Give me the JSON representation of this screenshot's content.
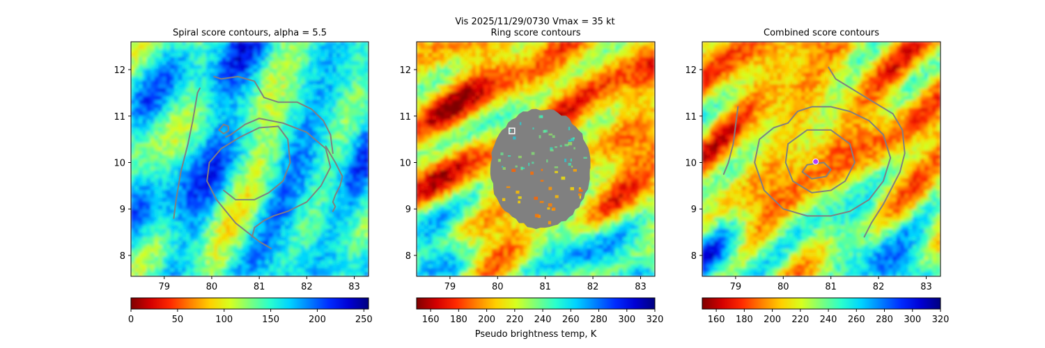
{
  "suptitle": [
    "Vis  2025/11/29/0730    Vmax = 35 kt",
    "Ring score contours"
  ],
  "colormap": [
    "#800000",
    "#d40000",
    "#ff2a00",
    "#ff8000",
    "#ffd000",
    "#d6ff1f",
    "#7dff7a",
    "#2affcd",
    "#00d4ff",
    "#0080ff",
    "#002cff",
    "#0000d4",
    "#00007f"
  ],
  "contour_color": "#808080",
  "chart_data": [
    {
      "type": "heatmap",
      "title": "Spiral score contours, alpha =  5.5",
      "xlim": [
        78.3,
        83.3
      ],
      "ylim": [
        7.55,
        12.6
      ],
      "xticks": [
        "79",
        "80",
        "81",
        "82",
        "83"
      ],
      "yticks": [
        "8",
        "9",
        "10",
        "11",
        "12"
      ],
      "colorbar": {
        "min": 0,
        "max": 255,
        "ticks": [
          "0",
          "50",
          "100",
          "150",
          "200",
          "250"
        ],
        "label": ""
      },
      "field_mean_fraction": 0.62,
      "contours": [
        {
          "x": [
            80.3,
            80.4,
            80.7,
            81.0,
            81.5,
            82.0,
            82.4,
            82.5,
            82.3,
            82.0,
            81.6,
            81.3,
            81.1,
            80.9,
            80.85
          ],
          "y": [
            10.55,
            10.6,
            10.82,
            10.95,
            10.85,
            10.65,
            10.3,
            9.9,
            9.5,
            9.15,
            8.95,
            8.85,
            8.75,
            8.6,
            8.4
          ]
        },
        {
          "x": [
            81.25,
            81.0,
            80.5,
            80.1,
            79.9,
            79.95,
            80.2,
            80.6,
            81.0,
            81.4,
            81.6,
            81.65,
            81.5,
            81.2,
            80.9,
            80.5,
            80.25
          ],
          "y": [
            8.15,
            8.3,
            8.7,
            9.2,
            9.6,
            10.0,
            10.3,
            10.55,
            10.75,
            10.78,
            10.5,
            10.0,
            9.6,
            9.35,
            9.2,
            9.2,
            9.4
          ]
        },
        {
          "x": [
            79.2,
            79.25,
            79.35,
            79.5,
            79.6,
            79.65,
            79.7,
            79.75
          ],
          "y": [
            8.8,
            9.2,
            9.8,
            10.4,
            10.9,
            11.2,
            11.5,
            11.6
          ]
        },
        {
          "x": [
            80.05,
            80.2,
            80.55,
            80.9,
            81.1,
            81.4,
            81.8,
            82.1,
            82.35,
            82.5,
            82.55
          ],
          "y": [
            11.85,
            11.8,
            11.85,
            11.75,
            11.4,
            11.3,
            11.3,
            11.15,
            10.9,
            10.6,
            10.2
          ]
        },
        {
          "x": [
            82.4,
            82.6,
            82.75,
            82.7,
            82.6,
            82.55,
            82.6,
            82.55
          ],
          "y": [
            10.35,
            10.0,
            9.7,
            9.5,
            9.3,
            9.15,
            9.05,
            8.95
          ]
        },
        {
          "x": [
            80.15,
            80.25,
            80.35,
            80.35,
            80.25,
            80.15
          ],
          "y": [
            10.7,
            10.62,
            10.68,
            10.78,
            10.82,
            10.7
          ]
        }
      ]
    },
    {
      "type": "heatmap",
      "title": "",
      "xlim": [
        78.3,
        83.3
      ],
      "ylim": [
        7.55,
        12.6
      ],
      "xticks": [
        "79",
        "80",
        "81",
        "82",
        "83"
      ],
      "yticks": [
        "8",
        "9",
        "10",
        "11",
        "12"
      ],
      "colorbar": {
        "min": 150,
        "max": 320,
        "ticks": [
          "160",
          "180",
          "200",
          "220",
          "240",
          "260",
          "280",
          "300",
          "320"
        ],
        "label": "Pseudo brightness temp, K"
      },
      "field_mean_fraction": 0.3,
      "masked_region": {
        "center": [
          80.9,
          9.87
        ],
        "radius_x": 1.05,
        "radius_y": 1.28
      },
      "marker": {
        "shape": "square",
        "x": 80.3,
        "y": 10.68,
        "color": "#ffffff"
      },
      "contours": []
    },
    {
      "type": "heatmap",
      "title": "Combined score contours",
      "xlim": [
        78.3,
        83.3
      ],
      "ylim": [
        7.55,
        12.6
      ],
      "xticks": [
        "79",
        "80",
        "81",
        "82",
        "83"
      ],
      "yticks": [
        "8",
        "9",
        "10",
        "11",
        "12"
      ],
      "colorbar": {
        "min": 150,
        "max": 320,
        "ticks": [
          "160",
          "180",
          "200",
          "220",
          "240",
          "260",
          "280",
          "300",
          "320"
        ],
        "label": ""
      },
      "field_mean_fraction": 0.32,
      "marker": {
        "shape": "circle",
        "x": 80.68,
        "y": 10.02,
        "color": "#b03cff"
      },
      "contours": [
        {
          "x": [
            80.1,
            80.3,
            80.6,
            81.0,
            81.4,
            81.8,
            82.1,
            82.25,
            82.1,
            81.8,
            81.4,
            81.0,
            80.5,
            80.0,
            79.6,
            79.4,
            79.5,
            79.8,
            80.1
          ],
          "y": [
            10.85,
            11.1,
            11.2,
            11.2,
            11.1,
            10.9,
            10.6,
            10.1,
            9.6,
            9.2,
            8.95,
            8.85,
            8.85,
            9.0,
            9.4,
            10.0,
            10.5,
            10.75,
            10.85
          ]
        },
        {
          "x": [
            80.1,
            80.5,
            81.0,
            81.4,
            81.5,
            81.3,
            81.0,
            80.6,
            80.2,
            80.05,
            80.1
          ],
          "y": [
            10.4,
            10.7,
            10.7,
            10.4,
            10.0,
            9.6,
            9.4,
            9.35,
            9.6,
            10.0,
            10.4
          ]
        },
        {
          "x": [
            80.5,
            80.85,
            81.0,
            80.9,
            80.6,
            80.4,
            80.5
          ],
          "y": [
            9.95,
            10.0,
            9.85,
            9.7,
            9.65,
            9.8,
            9.95
          ]
        },
        {
          "x": [
            80.95,
            81.1,
            81.5,
            81.9,
            82.3,
            82.5,
            82.55,
            82.45,
            82.3,
            82.1,
            81.85,
            81.7
          ],
          "y": [
            12.05,
            11.8,
            11.55,
            11.3,
            11.05,
            10.7,
            10.2,
            9.8,
            9.5,
            9.1,
            8.7,
            8.4
          ]
        },
        {
          "x": [
            79.05,
            79.0,
            78.95,
            78.85,
            78.75
          ],
          "y": [
            11.2,
            10.8,
            10.4,
            10.0,
            9.75
          ]
        }
      ]
    }
  ]
}
